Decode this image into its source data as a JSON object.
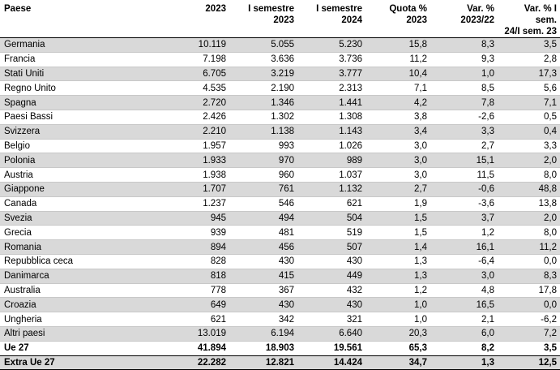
{
  "table": {
    "headers": [
      [
        "Paese"
      ],
      [
        "2023"
      ],
      [
        "I semestre",
        "2023"
      ],
      [
        "I semestre",
        "2024"
      ],
      [
        "Quota %",
        "2023"
      ],
      [
        "Var. %",
        "2023/22"
      ],
      [
        "Var. % I sem.",
        "24/I sem. 23"
      ]
    ],
    "rows": [
      [
        "Germania",
        "10.119",
        "5.055",
        "5.230",
        "15,8",
        "8,3",
        "3,5"
      ],
      [
        "Francia",
        "7.198",
        "3.636",
        "3.736",
        "11,2",
        "9,3",
        "2,8"
      ],
      [
        "Stati Uniti",
        "6.705",
        "3.219",
        "3.777",
        "10,4",
        "1,0",
        "17,3"
      ],
      [
        "Regno Unito",
        "4.535",
        "2.190",
        "2.313",
        "7,1",
        "8,5",
        "5,6"
      ],
      [
        "Spagna",
        "2.720",
        "1.346",
        "1.441",
        "4,2",
        "7,8",
        "7,1"
      ],
      [
        "Paesi Bassi",
        "2.426",
        "1.302",
        "1.308",
        "3,8",
        "-2,6",
        "0,5"
      ],
      [
        "Svizzera",
        "2.210",
        "1.138",
        "1.143",
        "3,4",
        "3,3",
        "0,4"
      ],
      [
        "Belgio",
        "1.957",
        "993",
        "1.026",
        "3,0",
        "2,7",
        "3,3"
      ],
      [
        "Polonia",
        "1.933",
        "970",
        "989",
        "3,0",
        "15,1",
        "2,0"
      ],
      [
        "Austria",
        "1.938",
        "960",
        "1.037",
        "3,0",
        "11,5",
        "8,0"
      ],
      [
        "Giappone",
        "1.707",
        "761",
        "1.132",
        "2,7",
        "-0,6",
        "48,8"
      ],
      [
        "Canada",
        "1.237",
        "546",
        "621",
        "1,9",
        "-3,6",
        "13,8"
      ],
      [
        "Svezia",
        "945",
        "494",
        "504",
        "1,5",
        "3,7",
        "2,0"
      ],
      [
        "Grecia",
        "939",
        "481",
        "519",
        "1,5",
        "1,2",
        "8,0"
      ],
      [
        "Romania",
        "894",
        "456",
        "507",
        "1,4",
        "16,1",
        "11,2"
      ],
      [
        "Repubblica ceca",
        "828",
        "430",
        "430",
        "1,3",
        "-6,4",
        "0,0"
      ],
      [
        "Danimarca",
        "818",
        "415",
        "449",
        "1,3",
        "3,0",
        "8,3"
      ],
      [
        "Australia",
        "778",
        "367",
        "432",
        "1,2",
        "4,8",
        "17,8"
      ],
      [
        "Croazia",
        "649",
        "430",
        "430",
        "1,0",
        "16,5",
        "0,0"
      ],
      [
        "Ungheria",
        "621",
        "342",
        "321",
        "1,0",
        "2,1",
        "-6,2"
      ],
      [
        "Altri paesi",
        "13.019",
        "6.194",
        "6.640",
        "20,3",
        "6,0",
        "7,2"
      ]
    ],
    "totals": [
      [
        "Ue 27",
        "41.894",
        "18.903",
        "19.561",
        "65,3",
        "8,2",
        "3,5"
      ],
      [
        "Extra Ue 27",
        "22.282",
        "12.821",
        "14.424",
        "34,7",
        "1,3",
        "12,5"
      ]
    ]
  }
}
